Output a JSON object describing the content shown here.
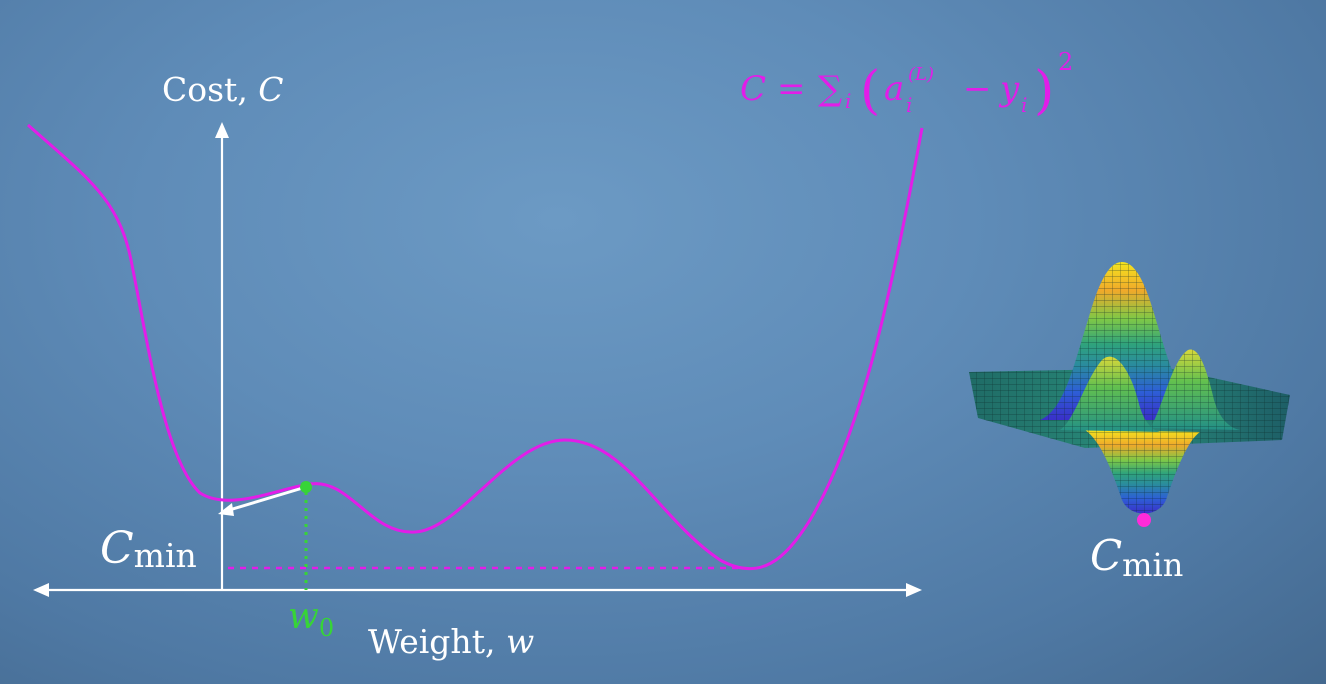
{
  "colors": {
    "cost_curve": "#e21de8",
    "axes": "#ffffff",
    "initial_point": "#37d437",
    "minimum_marker": "#ff2bd9",
    "background": "#5f8cb8"
  },
  "graph": {
    "y_axis_label": "Cost, ",
    "y_axis_var": "C",
    "x_axis_label": "Weight, ",
    "x_axis_var": "w",
    "cmin_base": "C",
    "cmin_sub": "min",
    "w0_base": "w",
    "w0_sub": "0"
  },
  "formula": {
    "lhs": "C",
    "equals": "=",
    "sum": "∑",
    "sum_index": "i",
    "open_paren": "(",
    "a": "a",
    "a_sub": "i",
    "a_sup": "(L)",
    "minus": "−",
    "y": "y",
    "y_sub": "i",
    "close_paren": ")",
    "power": "2"
  },
  "surface": {
    "cmin_base": "C",
    "cmin_sub": "min"
  }
}
